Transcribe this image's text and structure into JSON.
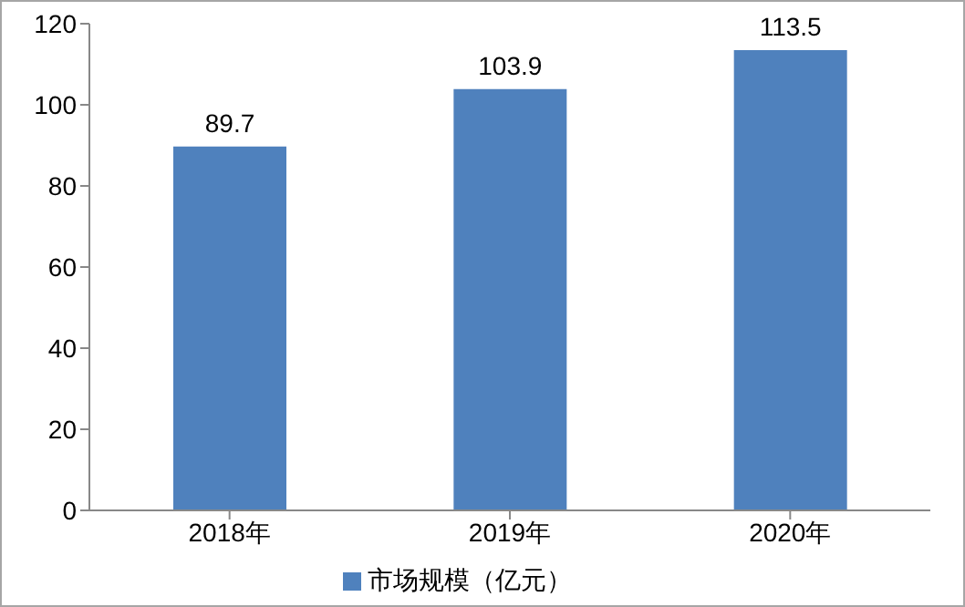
{
  "chart_data": {
    "type": "bar",
    "categories": [
      "2018年",
      "2019年",
      "2020年"
    ],
    "series": [
      {
        "name": "市场规模（亿元）",
        "color": "#4f81bd",
        "values": [
          89.7,
          103.9,
          113.5
        ]
      }
    ],
    "ylim": [
      0,
      120
    ],
    "yticks": [
      0,
      20,
      40,
      60,
      80,
      100,
      120
    ],
    "grid": false,
    "legend": "bottom",
    "data_labels": true
  }
}
